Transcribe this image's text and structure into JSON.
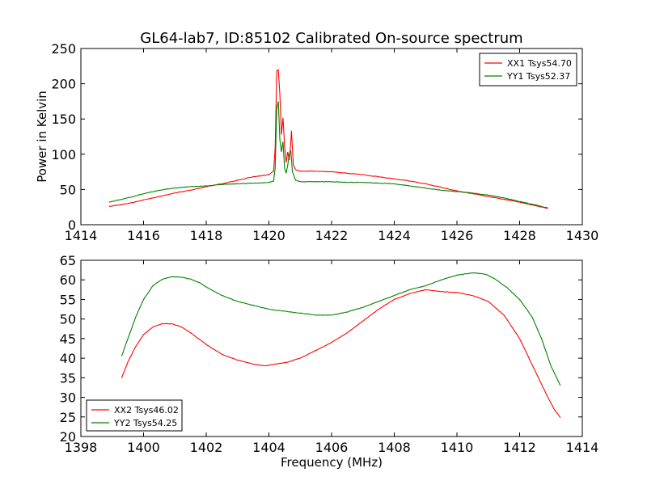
{
  "chart_data": [
    {
      "type": "line",
      "title": "GL64-lab7, ID:85102 Calibrated On-source spectrum",
      "xlabel": "",
      "ylabel": "Power in Kelvin",
      "xlim": [
        1414,
        1430
      ],
      "ylim": [
        0,
        250
      ],
      "xticks": [
        "1414",
        "1416",
        "1418",
        "1420",
        "1422",
        "1424",
        "1426",
        "1428",
        "1430"
      ],
      "yticks": [
        "0",
        "50",
        "100",
        "150",
        "200",
        "250"
      ],
      "legend_position": "top-right",
      "series": [
        {
          "name": "XX1 Tsys54.70",
          "color": "#ff0000",
          "points": [
            [
              1414.9,
              26
            ],
            [
              1415.5,
              30
            ],
            [
              1416,
              35
            ],
            [
              1416.5,
              40
            ],
            [
              1417,
              45
            ],
            [
              1417.5,
              49
            ],
            [
              1418,
              54
            ],
            [
              1418.5,
              58
            ],
            [
              1419,
              63
            ],
            [
              1419.5,
              68
            ],
            [
              1420,
              71
            ],
            [
              1420.15,
              76
            ],
            [
              1420.2,
              110
            ],
            [
              1420.25,
              218
            ],
            [
              1420.3,
              220
            ],
            [
              1420.35,
              185
            ],
            [
              1420.4,
              128
            ],
            [
              1420.45,
              152
            ],
            [
              1420.5,
              112
            ],
            [
              1420.55,
              88
            ],
            [
              1420.6,
              103
            ],
            [
              1420.65,
              92
            ],
            [
              1420.7,
              118
            ],
            [
              1420.72,
              133
            ],
            [
              1420.78,
              85
            ],
            [
              1420.85,
              78
            ],
            [
              1421,
              76
            ],
            [
              1421.5,
              76
            ],
            [
              1422,
              75
            ],
            [
              1422.5,
              73
            ],
            [
              1423,
              71
            ],
            [
              1423.5,
              68
            ],
            [
              1424,
              65
            ],
            [
              1424.5,
              62
            ],
            [
              1425,
              58
            ],
            [
              1425.5,
              53
            ],
            [
              1426,
              48
            ],
            [
              1426.5,
              44
            ],
            [
              1427,
              40
            ],
            [
              1427.5,
              36
            ],
            [
              1428,
              32
            ],
            [
              1428.5,
              27
            ],
            [
              1428.9,
              23
            ]
          ]
        },
        {
          "name": "YY1 Tsys52.37",
          "color": "#008000",
          "points": [
            [
              1414.9,
              32
            ],
            [
              1415.5,
              38
            ],
            [
              1416,
              44
            ],
            [
              1416.5,
              49
            ],
            [
              1417,
              52
            ],
            [
              1417.5,
              54
            ],
            [
              1418,
              55
            ],
            [
              1418.5,
              57
            ],
            [
              1419,
              58
            ],
            [
              1419.5,
              59
            ],
            [
              1420,
              60
            ],
            [
              1420.15,
              62
            ],
            [
              1420.2,
              80
            ],
            [
              1420.25,
              165
            ],
            [
              1420.3,
              175
            ],
            [
              1420.35,
              120
            ],
            [
              1420.4,
              103
            ],
            [
              1420.45,
              118
            ],
            [
              1420.5,
              80
            ],
            [
              1420.55,
              73
            ],
            [
              1420.6,
              84
            ],
            [
              1420.65,
              100
            ],
            [
              1420.7,
              105
            ],
            [
              1420.75,
              75
            ],
            [
              1420.85,
              63
            ],
            [
              1421,
              61
            ],
            [
              1421.5,
              61
            ],
            [
              1422,
              61
            ],
            [
              1422.5,
              60
            ],
            [
              1423,
              60
            ],
            [
              1423.5,
              59
            ],
            [
              1424,
              58
            ],
            [
              1424.5,
              55
            ],
            [
              1425,
              52
            ],
            [
              1425.5,
              49
            ],
            [
              1426,
              47
            ],
            [
              1426.5,
              45
            ],
            [
              1427,
              42
            ],
            [
              1427.5,
              38
            ],
            [
              1428,
              33
            ],
            [
              1428.5,
              28
            ],
            [
              1428.9,
              24
            ]
          ]
        }
      ]
    },
    {
      "type": "line",
      "title": "",
      "xlabel": "Frequency (MHz)",
      "ylabel": "",
      "xlim": [
        1398,
        1414
      ],
      "ylim": [
        20,
        65
      ],
      "xticks": [
        "1398",
        "1400",
        "1402",
        "1404",
        "1406",
        "1408",
        "1410",
        "1412",
        "1414"
      ],
      "yticks": [
        "20",
        "25",
        "30",
        "35",
        "40",
        "45",
        "50",
        "55",
        "60",
        "65"
      ],
      "legend_position": "bottom-left",
      "series": [
        {
          "name": "XX2 Tsys46.02",
          "color": "#ff0000",
          "points": [
            [
              1399.3,
              35
            ],
            [
              1399.5,
              39
            ],
            [
              1399.75,
              43
            ],
            [
              1400,
              46
            ],
            [
              1400.3,
              48
            ],
            [
              1400.6,
              48.8
            ],
            [
              1400.9,
              48.8
            ],
            [
              1401.2,
              48
            ],
            [
              1401.5,
              46.5
            ],
            [
              1402,
              43.5
            ],
            [
              1402.5,
              41
            ],
            [
              1403,
              39.5
            ],
            [
              1403.5,
              38.5
            ],
            [
              1403.9,
              38
            ],
            [
              1404.2,
              38.5
            ],
            [
              1404.6,
              39
            ],
            [
              1405,
              40
            ],
            [
              1405.5,
              42
            ],
            [
              1406,
              44
            ],
            [
              1406.5,
              46.5
            ],
            [
              1407,
              49.5
            ],
            [
              1407.5,
              52.5
            ],
            [
              1408,
              55
            ],
            [
              1408.5,
              56.5
            ],
            [
              1409,
              57.5
            ],
            [
              1409.5,
              57
            ],
            [
              1410,
              56.8
            ],
            [
              1410.5,
              56
            ],
            [
              1411,
              54.5
            ],
            [
              1411.5,
              51
            ],
            [
              1412,
              45
            ],
            [
              1412.3,
              40
            ],
            [
              1412.6,
              35
            ],
            [
              1412.9,
              30
            ],
            [
              1413.1,
              27
            ],
            [
              1413.3,
              24.8
            ]
          ]
        },
        {
          "name": "YY2 Tsys54.25",
          "color": "#008000",
          "points": [
            [
              1399.3,
              40.5
            ],
            [
              1399.5,
              45
            ],
            [
              1399.75,
              50.5
            ],
            [
              1400,
              55
            ],
            [
              1400.3,
              58.5
            ],
            [
              1400.6,
              60.2
            ],
            [
              1400.9,
              60.8
            ],
            [
              1401.2,
              60.7
            ],
            [
              1401.5,
              60.2
            ],
            [
              1401.8,
              59.2
            ],
            [
              1402,
              58.2
            ],
            [
              1402.5,
              56
            ],
            [
              1403,
              54.5
            ],
            [
              1403.5,
              53.5
            ],
            [
              1404,
              52.5
            ],
            [
              1404.5,
              52
            ],
            [
              1405,
              51.5
            ],
            [
              1405.5,
              51
            ],
            [
              1406,
              51
            ],
            [
              1406.5,
              51.8
            ],
            [
              1407,
              53
            ],
            [
              1407.5,
              54.5
            ],
            [
              1408,
              56
            ],
            [
              1408.5,
              57.5
            ],
            [
              1409,
              58.5
            ],
            [
              1409.5,
              60
            ],
            [
              1410,
              61.2
            ],
            [
              1410.5,
              61.8
            ],
            [
              1410.9,
              61.5
            ],
            [
              1411.2,
              60.3
            ],
            [
              1411.6,
              58
            ],
            [
              1412,
              55
            ],
            [
              1412.4,
              50.5
            ],
            [
              1412.7,
              45
            ],
            [
              1413,
              38
            ],
            [
              1413.3,
              33
            ]
          ]
        }
      ]
    }
  ]
}
